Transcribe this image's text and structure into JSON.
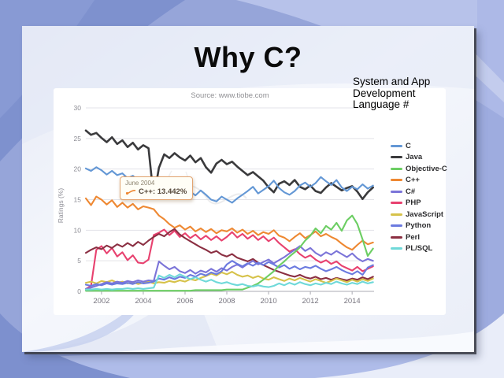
{
  "slide": {
    "title": "Why C?",
    "note_lines": [
      "System and App",
      "Development",
      "Language #"
    ]
  },
  "chart": {
    "source_label": "Source: www.tiobe.com",
    "y_axis_label": "Ratings (%)",
    "tooltip": {
      "date": "June 2004",
      "label": "C++: 13.442%"
    }
  },
  "colors": {
    "outer_background": "#96A5D9",
    "slide_background": "#F2F4FA",
    "panel_background": "#FFFFFF",
    "grid_line": "#E3E3E8",
    "axis_line": "#ABABB3",
    "tick_text": "#8C8C94",
    "tooltip_border": "#E2A470",
    "tooltip_background": "#FFFEF6"
  },
  "chart_data": {
    "type": "line",
    "xlabel": "",
    "ylabel": "Ratings (%)",
    "xlim": [
      2001.25,
      2015.05
    ],
    "ylim": [
      0,
      30
    ],
    "x_ticks": [
      2002,
      2004,
      2006,
      2008,
      2010,
      2012,
      2014
    ],
    "y_ticks": [
      0,
      5,
      10,
      15,
      20,
      25,
      30
    ],
    "grid": true,
    "legend_position": "right",
    "annotation": {
      "x": 2004.5,
      "series": "C++",
      "value": 13.442,
      "text": "June 2004 — C++: 13.442%"
    },
    "x": [
      2001.25,
      2001.5,
      2001.75,
      2002,
      2002.25,
      2002.5,
      2002.75,
      2003,
      2003.25,
      2003.5,
      2003.75,
      2004,
      2004.25,
      2004.5,
      2004.75,
      2005,
      2005.25,
      2005.5,
      2005.75,
      2006,
      2006.25,
      2006.5,
      2006.75,
      2007,
      2007.25,
      2007.5,
      2007.75,
      2008,
      2008.25,
      2008.5,
      2008.75,
      2009,
      2009.25,
      2009.5,
      2009.75,
      2010,
      2010.25,
      2010.5,
      2010.75,
      2011,
      2011.25,
      2011.5,
      2011.75,
      2012,
      2012.25,
      2012.5,
      2012.75,
      2013,
      2013.25,
      2013.5,
      2013.75,
      2014,
      2014.25,
      2014.5,
      2014.75,
      2015
    ],
    "series": [
      {
        "name": "C",
        "color": "#6397D5",
        "values": [
          20.1,
          19.7,
          20.3,
          19.8,
          19.1,
          19.7,
          19.0,
          19.3,
          18.5,
          18.9,
          18.1,
          17.7,
          16.8,
          17.4,
          16.1,
          16.7,
          17.8,
          16.4,
          15.9,
          17.1,
          16.3,
          15.7,
          16.5,
          15.8,
          15.0,
          14.7,
          15.5,
          15.0,
          14.5,
          15.2,
          15.8,
          16.4,
          17.1,
          16.0,
          16.6,
          17.2,
          18.1,
          16.9,
          16.2,
          15.8,
          16.4,
          17.3,
          17.8,
          17.1,
          17.7,
          18.7,
          18.0,
          17.4,
          18.2,
          17.0,
          16.4,
          17.1,
          16.7,
          17.5,
          16.8,
          17.3
        ]
      },
      {
        "name": "Java",
        "color": "#3A3A3C",
        "values": [
          26.3,
          25.6,
          25.9,
          25.1,
          24.4,
          25.2,
          24.1,
          24.7,
          23.6,
          24.3,
          23.2,
          23.9,
          23.4,
          15.3,
          20.2,
          22.4,
          21.8,
          22.6,
          21.9,
          21.4,
          22.2,
          21.1,
          21.8,
          20.3,
          19.4,
          20.9,
          21.5,
          20.8,
          21.2,
          20.4,
          19.7,
          19.0,
          19.5,
          18.8,
          18.1,
          17.0,
          16.2,
          17.6,
          18.0,
          17.4,
          18.2,
          17.1,
          16.7,
          17.3,
          16.4,
          16.1,
          17.0,
          17.7,
          17.1,
          16.5,
          16.9,
          17.2,
          16.3,
          15.1,
          16.2,
          17.0
        ]
      },
      {
        "name": "Objective-C",
        "color": "#6CCE63",
        "values": [
          0.1,
          0.1,
          0.1,
          0.1,
          0.1,
          0.1,
          0.1,
          0.1,
          0.1,
          0.1,
          0.1,
          0.1,
          0.1,
          0.1,
          0.1,
          0.1,
          0.1,
          0.1,
          0.1,
          0.1,
          0.1,
          0.2,
          0.2,
          0.2,
          0.2,
          0.2,
          0.2,
          0.3,
          0.3,
          0.3,
          0.3,
          0.6,
          0.9,
          1.3,
          1.9,
          2.6,
          3.3,
          4.2,
          4.9,
          5.7,
          6.4,
          7.2,
          8.3,
          9.1,
          10.3,
          9.5,
          10.7,
          10.1,
          11.2,
          9.9,
          11.6,
          12.4,
          11.0,
          8.5,
          5.8,
          7.0
        ]
      },
      {
        "name": "C++",
        "color": "#EE8832",
        "values": [
          15.2,
          14.1,
          15.5,
          15.0,
          14.2,
          14.9,
          13.8,
          14.5,
          13.7,
          14.3,
          13.4,
          13.9,
          13.7,
          13.44,
          12.4,
          11.8,
          11.0,
          10.4,
          10.8,
          10.1,
          10.6,
          9.8,
          10.3,
          9.7,
          10.2,
          9.5,
          10.0,
          9.8,
          10.3,
          9.6,
          10.1,
          9.4,
          9.9,
          9.2,
          9.7,
          9.4,
          10.0,
          9.1,
          8.8,
          8.2,
          8.9,
          9.5,
          8.7,
          9.2,
          9.8,
          9.0,
          9.4,
          8.9,
          8.5,
          7.8,
          7.2,
          6.8,
          7.6,
          8.3,
          7.7,
          8.0
        ]
      },
      {
        "name": "C#",
        "color": "#7B74D8",
        "values": [
          0.4,
          0.6,
          0.9,
          1.2,
          1.5,
          1.3,
          1.6,
          1.4,
          1.7,
          1.5,
          1.8,
          1.6,
          1.8,
          1.7,
          4.9,
          4.2,
          3.6,
          4.0,
          3.3,
          3.0,
          3.5,
          2.9,
          3.4,
          3.1,
          3.7,
          3.2,
          3.8,
          3.4,
          4.0,
          4.4,
          3.9,
          4.5,
          5.0,
          4.4,
          4.8,
          5.2,
          4.6,
          5.1,
          5.6,
          6.2,
          6.8,
          7.4,
          6.6,
          7.1,
          6.3,
          5.8,
          6.4,
          6.0,
          6.6,
          6.1,
          5.6,
          6.2,
          5.4,
          4.9,
          5.3,
          5.0
        ]
      },
      {
        "name": "PHP",
        "color": "#E8416F",
        "values": [
          0.4,
          0.9,
          6.8,
          7.4,
          6.2,
          7.1,
          5.7,
          6.4,
          5.1,
          5.9,
          4.7,
          4.6,
          5.2,
          9.2,
          9.6,
          10.1,
          9.2,
          9.9,
          8.9,
          9.5,
          8.7,
          9.3,
          8.5,
          9.1,
          8.4,
          9.0,
          8.3,
          8.9,
          9.7,
          8.8,
          9.4,
          8.6,
          9.2,
          8.4,
          9.0,
          8.2,
          8.8,
          7.9,
          7.2,
          6.5,
          6.9,
          6.1,
          5.5,
          5.9,
          5.2,
          4.7,
          5.1,
          4.5,
          4.9,
          4.2,
          3.8,
          3.4,
          4.0,
          3.3,
          3.7,
          4.1
        ]
      },
      {
        "name": "JavaScript",
        "color": "#D6C24A",
        "values": [
          1.4,
          1.6,
          1.3,
          1.7,
          1.5,
          1.8,
          1.4,
          1.6,
          1.3,
          1.5,
          1.2,
          1.4,
          1.6,
          1.3,
          1.5,
          1.4,
          1.7,
          1.5,
          1.8,
          1.6,
          2.0,
          1.8,
          2.2,
          2.5,
          2.9,
          2.6,
          3.1,
          2.8,
          3.2,
          2.7,
          2.4,
          2.6,
          2.2,
          2.5,
          2.1,
          1.9,
          2.3,
          2.0,
          1.7,
          2.1,
          1.8,
          2.2,
          1.9,
          1.6,
          2.0,
          1.7,
          1.4,
          1.7,
          2.1,
          1.8,
          1.5,
          1.9,
          1.6,
          2.0,
          1.7,
          2.1
        ]
      },
      {
        "name": "Python",
        "color": "#6B7ADF",
        "values": [
          1.1,
          0.9,
          1.2,
          1.0,
          1.3,
          1.1,
          1.3,
          1.2,
          1.4,
          1.2,
          1.5,
          1.3,
          1.4,
          1.6,
          2.1,
          1.9,
          2.3,
          2.0,
          2.4,
          2.2,
          2.7,
          2.4,
          2.9,
          2.6,
          3.1,
          2.8,
          3.3,
          4.4,
          5.0,
          4.5,
          4.1,
          4.6,
          4.2,
          4.7,
          4.3,
          4.8,
          4.4,
          3.9,
          4.3,
          3.7,
          4.1,
          3.6,
          4.0,
          3.8,
          4.2,
          3.7,
          3.3,
          3.6,
          4.0,
          3.5,
          3.1,
          2.8,
          3.3,
          2.7,
          3.9,
          4.3
        ]
      },
      {
        "name": "Perl",
        "color": "#8B2F42",
        "values": [
          6.3,
          6.8,
          7.2,
          6.9,
          7.5,
          7.1,
          7.7,
          7.3,
          7.9,
          7.4,
          8.1,
          7.6,
          8.3,
          8.9,
          9.4,
          9.0,
          9.7,
          10.2,
          9.3,
          8.7,
          8.2,
          7.7,
          7.2,
          6.8,
          6.3,
          6.6,
          6.0,
          5.7,
          6.1,
          5.5,
          5.2,
          4.9,
          5.3,
          4.7,
          4.3,
          3.9,
          3.5,
          3.2,
          2.9,
          2.6,
          2.4,
          2.7,
          2.3,
          2.1,
          2.4,
          2.0,
          2.2,
          1.9,
          2.2,
          2.0,
          1.8,
          2.1,
          1.9,
          2.3,
          2.0,
          2.4
        ]
      },
      {
        "name": "PL/SQL",
        "color": "#6FD9D9",
        "values": [
          0.3,
          0.3,
          0.4,
          0.3,
          0.4,
          0.3,
          0.4,
          0.4,
          0.5,
          0.4,
          0.5,
          0.4,
          0.5,
          0.6,
          2.6,
          2.2,
          2.7,
          2.3,
          2.8,
          2.4,
          2.0,
          2.3,
          1.9,
          1.6,
          1.9,
          1.5,
          1.3,
          1.5,
          1.2,
          1.0,
          1.2,
          0.9,
          0.8,
          1.0,
          0.8,
          0.7,
          0.9,
          1.3,
          1.0,
          1.4,
          1.1,
          1.5,
          1.2,
          1.0,
          1.3,
          1.1,
          1.4,
          1.2,
          1.6,
          1.3,
          1.1,
          1.4,
          1.2,
          1.6,
          1.3,
          1.5
        ]
      }
    ]
  }
}
